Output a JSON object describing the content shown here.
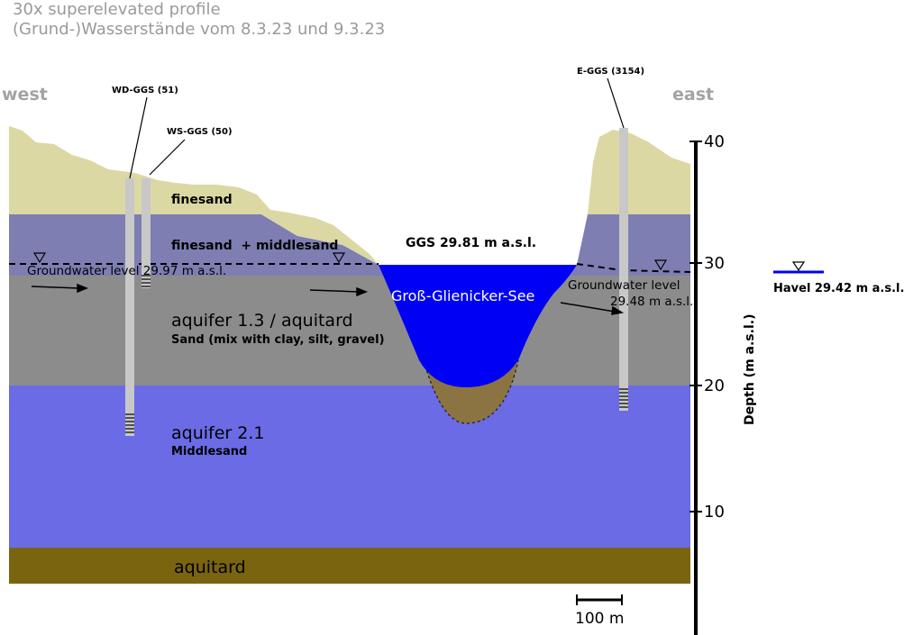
{
  "header": {
    "line1": "30x superelevated profile",
    "line2": "(Grund-)Wasserstände vom 8.3.23 und 9.3.23"
  },
  "directions": {
    "west": "west",
    "east": "east"
  },
  "wells": {
    "wd": "WD-GGS (51)",
    "ws": "WS-GGS (50)",
    "e": "E-GGS (3154)"
  },
  "layers": {
    "finesand": "finesand",
    "finesand_middlesand": "finesand  + middlesand",
    "aquifer13": "aquifer 1.3 / aquitard",
    "aquifer13_sub": "Sand (mix with clay, silt, gravel)",
    "aquifer21": "aquifer 2.1",
    "aquifer21_sub": "Middlesand",
    "aquitard": "aquitard"
  },
  "water": {
    "lake_level": "GGS 29.81 m a.s.l.",
    "lake_name": "Groß-Glienicker-See",
    "gw_west": "Groundwater level 29.97 m a.s.l.",
    "gw_east_line1": "Groundwater level",
    "gw_east_line2": "29.48 m a.s.l.",
    "havel": "Havel 29.42 m a.s.l."
  },
  "axis": {
    "label": "Depth (m a.s.l.)",
    "ticks": [
      "40",
      "30",
      "20",
      "10"
    ]
  },
  "scale_bar": "100 m",
  "colors": {
    "finesand": "#dbd8a4",
    "finesand_middlesand": "#7e7eb3",
    "aquifer13": "#8c8c8c",
    "aquifer21": "#6b6be6",
    "aquitard": "#7a6410",
    "lake": "#0000f4",
    "lake_sediment": "#8c7442",
    "well": "#c8c8c8",
    "header_text": "#9a9a9a"
  }
}
